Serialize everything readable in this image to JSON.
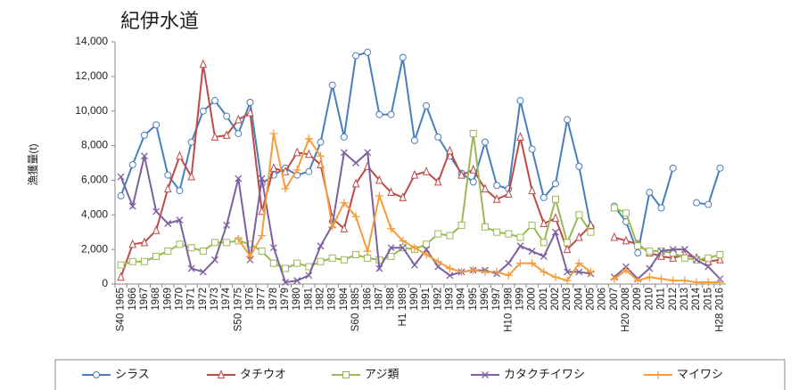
{
  "chart_data": {
    "type": "line",
    "title": "紀伊水道",
    "y_label": "漁獲量(t)",
    "categories": [
      "S40 1965",
      "1966",
      "1967",
      "1968",
      "1969",
      "1970",
      "1971",
      "1972",
      "1973",
      "1974",
      "S50 1975",
      "1976",
      "1977",
      "1978",
      "1979",
      "1980",
      "1981",
      "1982",
      "1983",
      "1984",
      "S60 1985",
      "1986",
      "1987",
      "1988",
      "H1 1989",
      "1990",
      "1991",
      "1992",
      "1993",
      "1994",
      "1995",
      "1996",
      "1997",
      "H10 1998",
      "1999",
      "2000",
      "2001",
      "2002",
      "2003",
      "2004",
      "2005",
      "2006",
      "2007",
      "H20 2008",
      "2009",
      "2010",
      "2011",
      "2012",
      "2013",
      "2014",
      "2015",
      "H28 2016"
    ],
    "series": [
      {
        "name": "シラス",
        "color": "#4a7ebb",
        "marker": "circle",
        "values": [
          5100,
          6900,
          8600,
          9200,
          6300,
          5400,
          8200,
          10000,
          10600,
          9700,
          8700,
          10500,
          5800,
          6300,
          6700,
          6300,
          6500,
          8200,
          11500,
          8500,
          13200,
          13400,
          9800,
          9800,
          13100,
          8300,
          10300,
          8500,
          7400,
          6400,
          5900,
          8200,
          5700,
          5500,
          10600,
          7800,
          5000,
          5800,
          9500,
          6800,
          3300,
          null,
          4500,
          3600,
          1800,
          5300,
          4400,
          6700,
          null,
          4700,
          4600,
          6700
        ]
      },
      {
        "name": "タチウオ",
        "color": "#be4b48",
        "marker": "triangle",
        "values": [
          400,
          2300,
          2400,
          3100,
          5500,
          7400,
          6200,
          12700,
          8500,
          8600,
          9500,
          9900,
          4200,
          6700,
          6500,
          7600,
          7500,
          6900,
          3800,
          3200,
          5800,
          6800,
          6000,
          5300,
          5000,
          6300,
          6500,
          5900,
          7700,
          6300,
          6600,
          5500,
          4900,
          5200,
          8500,
          5400,
          3500,
          3800,
          2000,
          2700,
          3400,
          null,
          2700,
          2500,
          2300,
          1800,
          1600,
          1500,
          1700,
          1500,
          1300,
          1400
        ]
      },
      {
        "name": "アジ類",
        "color": "#98b954",
        "marker": "square",
        "values": [
          1100,
          1300,
          1300,
          1600,
          1900,
          2300,
          2100,
          1900,
          2400,
          2400,
          2500,
          2300,
          1900,
          1200,
          900,
          1200,
          1000,
          1300,
          1500,
          1400,
          1700,
          1500,
          1400,
          1600,
          2100,
          2000,
          2300,
          2900,
          2800,
          3400,
          8700,
          3300,
          3000,
          2900,
          2700,
          3400,
          2400,
          4900,
          2400,
          4000,
          3000,
          null,
          4400,
          4100,
          2200,
          1900,
          1900,
          1800,
          1500,
          1400,
          1500,
          1700
        ]
      },
      {
        "name": "カタクチイワシ",
        "color": "#7d60a0",
        "marker": "x",
        "values": [
          6200,
          4500,
          7400,
          4200,
          3500,
          3700,
          900,
          700,
          1400,
          3400,
          6100,
          1400,
          6100,
          2100,
          100,
          200,
          500,
          2200,
          3400,
          7600,
          7000,
          7600,
          900,
          2100,
          2100,
          1100,
          2000,
          1000,
          500,
          700,
          800,
          800,
          600,
          1200,
          2200,
          1900,
          1600,
          3000,
          700,
          700,
          600,
          null,
          400,
          1000,
          300,
          900,
          1900,
          2000,
          2000,
          1400,
          1000,
          300
        ]
      },
      {
        "name": "マイワシ",
        "color": "#f59d3d",
        "marker": "plus",
        "values": [
          null,
          null,
          null,
          null,
          null,
          null,
          null,
          null,
          null,
          null,
          2600,
          1600,
          2800,
          8700,
          5500,
          6600,
          8400,
          7400,
          3300,
          4700,
          3900,
          1900,
          5100,
          3200,
          2500,
          2100,
          1700,
          1300,
          900,
          700,
          800,
          700,
          700,
          500,
          1200,
          1200,
          700,
          400,
          200,
          1200,
          700,
          null,
          300,
          800,
          200,
          400,
          300,
          200,
          200,
          100,
          100,
          100
        ]
      }
    ],
    "ylim": [
      0,
      14000
    ],
    "yticks": [
      0,
      {
        "value": 2000,
        "label": "2,000"
      },
      {
        "value": 4000,
        "label": "4,000"
      },
      {
        "value": 6000,
        "label": "6,000"
      },
      {
        "value": 8000,
        "label": "8,000"
      },
      {
        "value": 10000,
        "label": "10,000"
      },
      {
        "value": 12000,
        "label": "12,000"
      },
      {
        "value": 14000,
        "label": "14,000"
      }
    ],
    "legend": "bottom"
  }
}
